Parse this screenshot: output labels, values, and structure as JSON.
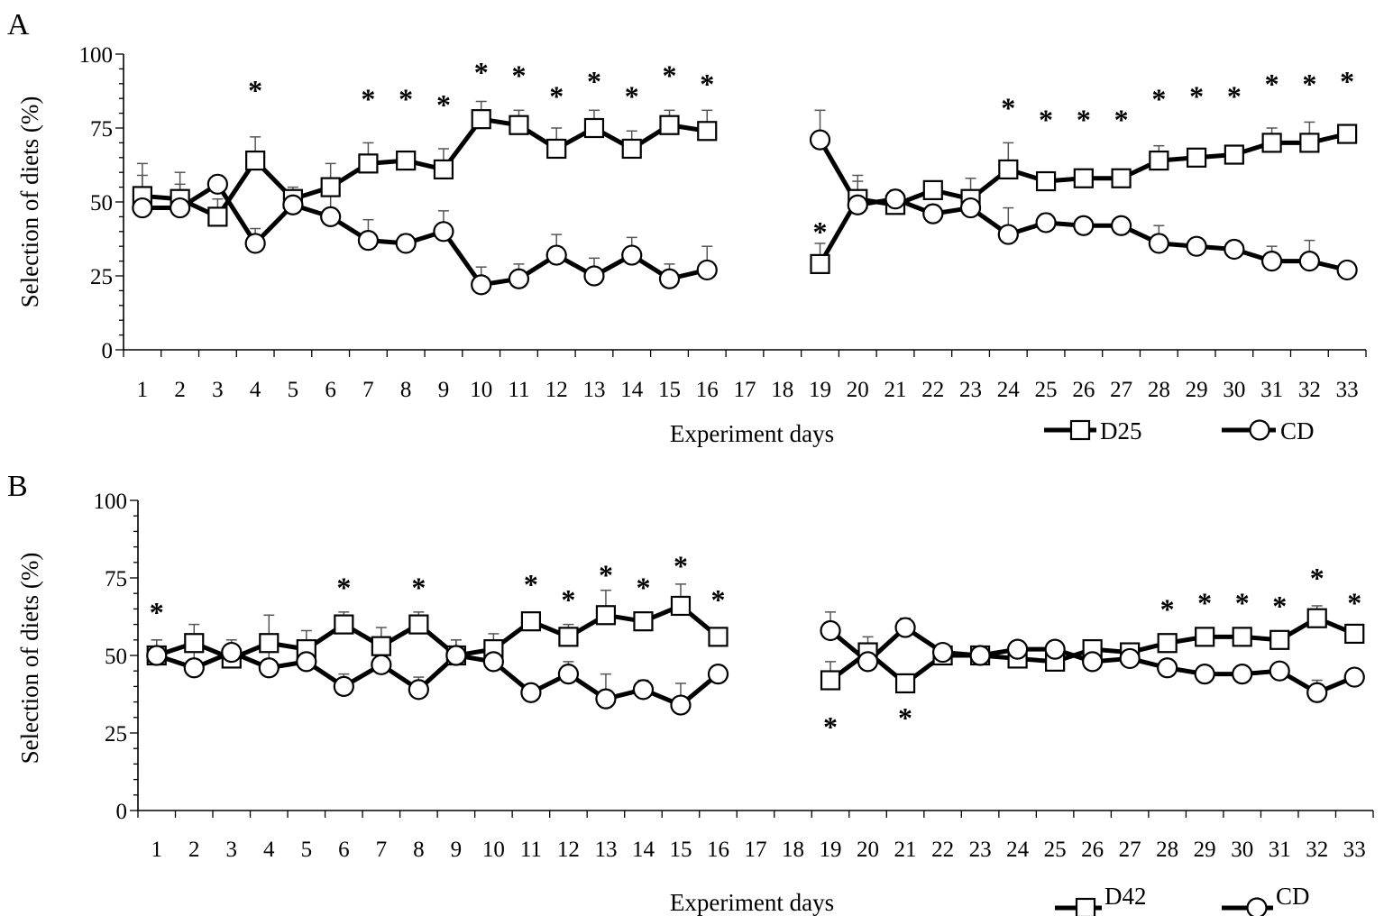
{
  "chart_data": [
    {
      "type": "line",
      "panel_label": "A",
      "ylabel": "Selection of diets (%)",
      "xlabel": "Experiment days",
      "ylim": [
        0,
        100
      ],
      "yticks": [
        0,
        25,
        50,
        75,
        100
      ],
      "ytick_labels": [
        "0",
        "25",
        "50",
        "75",
        "100"
      ],
      "x_range": [
        1,
        33
      ],
      "x_tick_labels": [
        "1",
        "2",
        "3",
        "4",
        "5",
        "6",
        "7",
        "8",
        "9",
        "10",
        "11",
        "12",
        "13",
        "14",
        "15",
        "16",
        "17",
        "18",
        "19",
        "20",
        "21",
        "22",
        "23",
        "24",
        "25",
        "26",
        "27",
        "28",
        "29",
        "30",
        "31",
        "32",
        "33"
      ],
      "legend": [
        "D25",
        "CD"
      ],
      "series": [
        {
          "name": "D25",
          "marker": "square",
          "segments": [
            [
              [
                1,
                52,
                11
              ],
              [
                2,
                51,
                9
              ],
              [
                3,
                45,
                6
              ],
              [
                4,
                64,
                8
              ],
              [
                5,
                51,
                4
              ],
              [
                6,
                55,
                8
              ],
              [
                7,
                63,
                7
              ],
              [
                8,
                64,
                3
              ],
              [
                9,
                61,
                7
              ],
              [
                10,
                78,
                6
              ],
              [
                11,
                76,
                5
              ],
              [
                12,
                68,
                7
              ],
              [
                13,
                75,
                6
              ],
              [
                14,
                68,
                6
              ],
              [
                15,
                76,
                5
              ],
              [
                16,
                74,
                7
              ]
            ],
            [
              [
                19,
                29,
                7
              ],
              [
                20,
                51,
                8
              ],
              [
                21,
                49,
                3
              ],
              [
                22,
                54,
                3
              ],
              [
                23,
                51,
                7
              ],
              [
                24,
                61,
                9
              ],
              [
                25,
                57,
                3
              ],
              [
                26,
                58,
                2
              ],
              [
                27,
                58,
                2
              ],
              [
                28,
                64,
                5
              ],
              [
                29,
                65,
                2
              ],
              [
                30,
                66,
                2
              ],
              [
                31,
                70,
                5
              ],
              [
                32,
                70,
                7
              ],
              [
                33,
                73,
                2
              ]
            ]
          ]
        },
        {
          "name": "CD",
          "marker": "circle",
          "segments": [
            [
              [
                1,
                48,
                11
              ],
              [
                2,
                48,
                8
              ],
              [
                3,
                56,
                3
              ],
              [
                4,
                36,
                5
              ],
              [
                5,
                49,
                5
              ],
              [
                6,
                45,
                8
              ],
              [
                7,
                37,
                7
              ],
              [
                8,
                36,
                3
              ],
              [
                9,
                40,
                7
              ],
              [
                10,
                22,
                6
              ],
              [
                11,
                24,
                5
              ],
              [
                12,
                32,
                7
              ],
              [
                13,
                25,
                6
              ],
              [
                14,
                32,
                6
              ],
              [
                15,
                24,
                5
              ],
              [
                16,
                27,
                8
              ]
            ],
            [
              [
                19,
                71,
                10
              ],
              [
                20,
                49,
                8
              ],
              [
                21,
                51,
                3
              ],
              [
                22,
                46,
                3
              ],
              [
                23,
                48,
                6
              ],
              [
                24,
                39,
                9
              ],
              [
                25,
                43,
                3
              ],
              [
                26,
                42,
                2
              ],
              [
                27,
                42,
                2
              ],
              [
                28,
                36,
                6
              ],
              [
                29,
                35,
                2
              ],
              [
                30,
                34,
                3
              ],
              [
                31,
                30,
                5
              ],
              [
                32,
                30,
                7
              ],
              [
                33,
                27,
                2
              ]
            ]
          ]
        }
      ],
      "annotations": [
        {
          "x": 4,
          "y": 90,
          "text": "*"
        },
        {
          "x": 7,
          "y": 87,
          "text": "*"
        },
        {
          "x": 8,
          "y": 87,
          "text": "*"
        },
        {
          "x": 9,
          "y": 85,
          "text": "*"
        },
        {
          "x": 10,
          "y": 96,
          "text": "*"
        },
        {
          "x": 11,
          "y": 95,
          "text": "*"
        },
        {
          "x": 12,
          "y": 88,
          "text": "*"
        },
        {
          "x": 13,
          "y": 93,
          "text": "*"
        },
        {
          "x": 14,
          "y": 88,
          "text": "*"
        },
        {
          "x": 15,
          "y": 95,
          "text": "*"
        },
        {
          "x": 16,
          "y": 92,
          "text": "*"
        },
        {
          "x": 19,
          "y": 42,
          "text": "*"
        },
        {
          "x": 24,
          "y": 84,
          "text": "*"
        },
        {
          "x": 25,
          "y": 80,
          "text": "*"
        },
        {
          "x": 26,
          "y": 80,
          "text": "*"
        },
        {
          "x": 27,
          "y": 80,
          "text": "*"
        },
        {
          "x": 28,
          "y": 87,
          "text": "*"
        },
        {
          "x": 29,
          "y": 88,
          "text": "*"
        },
        {
          "x": 30,
          "y": 88,
          "text": "*"
        },
        {
          "x": 31,
          "y": 92,
          "text": "*"
        },
        {
          "x": 32,
          "y": 92,
          "text": "*"
        },
        {
          "x": 33,
          "y": 93,
          "text": "*"
        }
      ]
    },
    {
      "type": "line",
      "panel_label": "B",
      "ylabel": "Selection of diets (%)",
      "xlabel": "Experiment days",
      "ylim": [
        0,
        100
      ],
      "yticks": [
        0,
        25,
        50,
        75,
        100
      ],
      "ytick_labels": [
        "0",
        "25",
        "50",
        "75",
        "100"
      ],
      "x_range": [
        1,
        33
      ],
      "x_tick_labels": [
        "1",
        "2",
        "3",
        "4",
        "5",
        "6",
        "7",
        "8",
        "9",
        "10",
        "11",
        "12",
        "13",
        "14",
        "15",
        "16",
        "17",
        "18",
        "19",
        "20",
        "21",
        "22",
        "23",
        "24",
        "25",
        "26",
        "27",
        "28",
        "29",
        "30",
        "31",
        "32",
        "33"
      ],
      "legend": [
        "D42",
        "CD"
      ],
      "series": [
        {
          "name": "D42",
          "marker": "square",
          "segments": [
            [
              [
                1,
                50,
                5
              ],
              [
                2,
                54,
                6
              ],
              [
                3,
                49,
                4
              ],
              [
                4,
                54,
                9
              ],
              [
                5,
                52,
                6
              ],
              [
                6,
                60,
                4
              ],
              [
                7,
                53,
                6
              ],
              [
                8,
                60,
                4
              ],
              [
                9,
                50,
                5
              ],
              [
                10,
                52,
                5
              ],
              [
                11,
                61,
                2
              ],
              [
                12,
                56,
                4
              ],
              [
                13,
                63,
                8
              ],
              [
                14,
                61,
                2
              ],
              [
                15,
                66,
                7
              ],
              [
                16,
                56,
                2
              ]
            ],
            [
              [
                19,
                42,
                6
              ],
              [
                20,
                51,
                5
              ],
              [
                21,
                41,
                3
              ],
              [
                22,
                50,
                2
              ],
              [
                23,
                50,
                2
              ],
              [
                24,
                49,
                2
              ],
              [
                25,
                48,
                2
              ],
              [
                26,
                52,
                2
              ],
              [
                27,
                51,
                2
              ],
              [
                28,
                54,
                2
              ],
              [
                29,
                56,
                2
              ],
              [
                30,
                56,
                2
              ],
              [
                31,
                55,
                2
              ],
              [
                32,
                62,
                4
              ],
              [
                33,
                57,
                2
              ]
            ]
          ]
        },
        {
          "name": "CD",
          "marker": "circle",
          "segments": [
            [
              [
                1,
                50,
                5
              ],
              [
                2,
                46,
                6
              ],
              [
                3,
                51,
                4
              ],
              [
                4,
                46,
                8
              ],
              [
                5,
                48,
                6
              ],
              [
                6,
                40,
                4
              ],
              [
                7,
                47,
                6
              ],
              [
                8,
                39,
                4
              ],
              [
                9,
                50,
                5
              ],
              [
                10,
                48,
                5
              ],
              [
                11,
                38,
                2
              ],
              [
                12,
                44,
                4
              ],
              [
                13,
                36,
                8
              ],
              [
                14,
                39,
                3
              ],
              [
                15,
                34,
                7
              ],
              [
                16,
                44,
                2
              ]
            ],
            [
              [
                19,
                58,
                6
              ],
              [
                20,
                48,
                5
              ],
              [
                21,
                59,
                3
              ],
              [
                22,
                51,
                2
              ],
              [
                23,
                50,
                2
              ],
              [
                24,
                52,
                2
              ],
              [
                25,
                52,
                2
              ],
              [
                26,
                48,
                3
              ],
              [
                27,
                49,
                2
              ],
              [
                28,
                46,
                2
              ],
              [
                29,
                44,
                2
              ],
              [
                30,
                44,
                2
              ],
              [
                31,
                45,
                2
              ],
              [
                32,
                38,
                4
              ],
              [
                33,
                43,
                2
              ]
            ]
          ]
        }
      ],
      "annotations": [
        {
          "x": 1,
          "y": 66,
          "text": "*"
        },
        {
          "x": 6,
          "y": 74,
          "text": "*"
        },
        {
          "x": 8,
          "y": 74,
          "text": "*"
        },
        {
          "x": 11,
          "y": 75,
          "text": "*"
        },
        {
          "x": 12,
          "y": 70,
          "text": "*"
        },
        {
          "x": 13,
          "y": 78,
          "text": "*"
        },
        {
          "x": 14,
          "y": 74,
          "text": "*"
        },
        {
          "x": 15,
          "y": 81,
          "text": "*"
        },
        {
          "x": 16,
          "y": 70,
          "text": "*"
        },
        {
          "x": 19,
          "y": 29,
          "text": "*"
        },
        {
          "x": 21,
          "y": 32,
          "text": "*"
        },
        {
          "x": 28,
          "y": 67,
          "text": "*"
        },
        {
          "x": 29,
          "y": 69,
          "text": "*"
        },
        {
          "x": 30,
          "y": 69,
          "text": "*"
        },
        {
          "x": 31,
          "y": 68,
          "text": "*"
        },
        {
          "x": 32,
          "y": 77,
          "text": "*"
        },
        {
          "x": 33,
          "y": 69,
          "text": "*"
        }
      ]
    }
  ]
}
